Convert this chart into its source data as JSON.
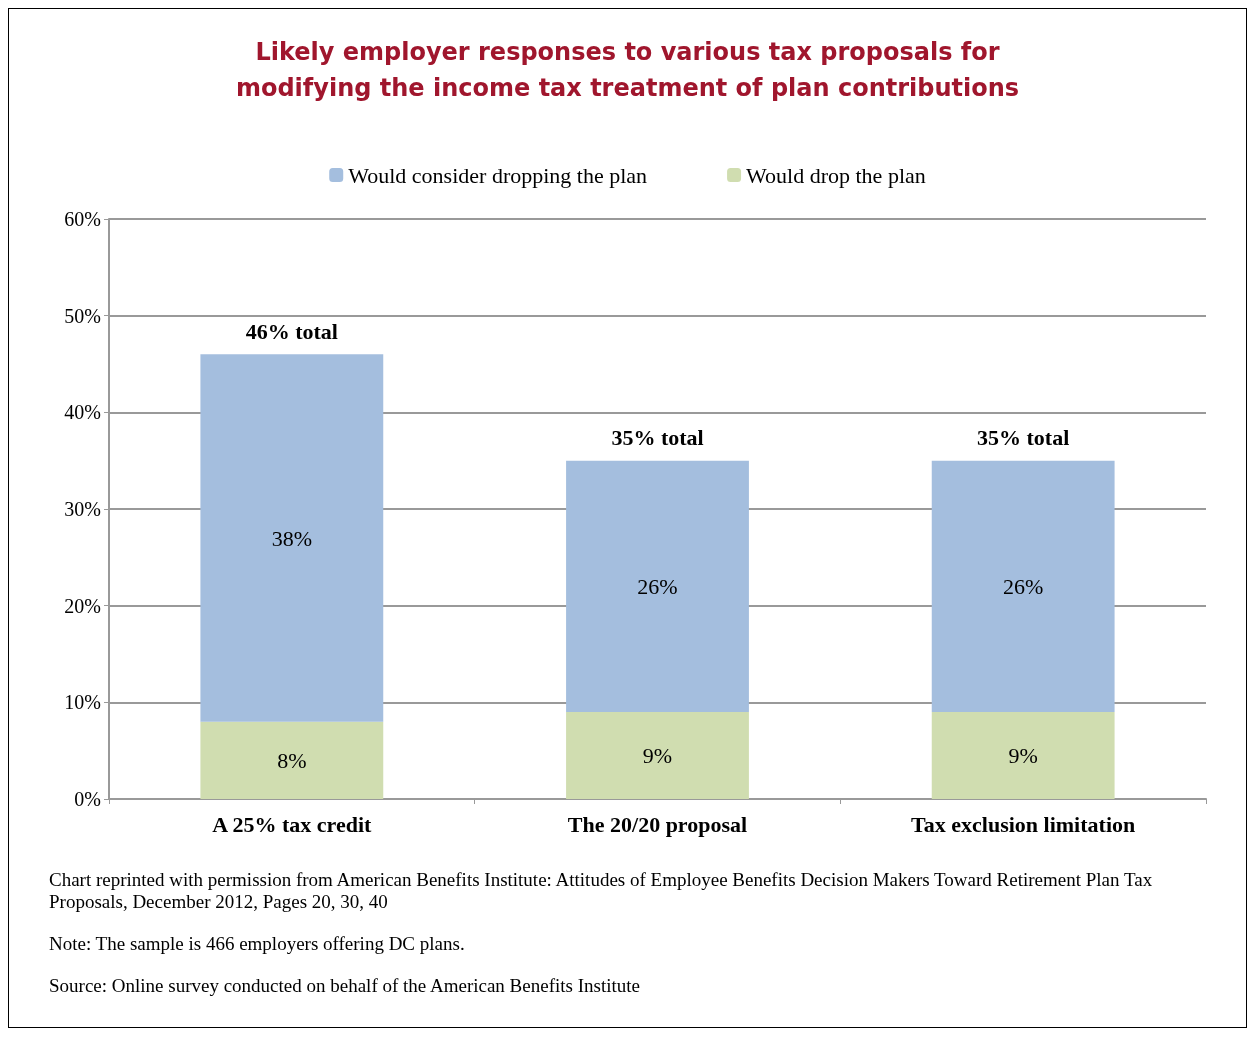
{
  "chart_data": {
    "type": "bar",
    "title": "Likely employer responses to various tax proposals for\nmodifying the income tax treatment of plan contributions",
    "categories": [
      "A 25% tax credit",
      "The 20/20 proposal",
      "Tax exclusion limitation"
    ],
    "stacked": true,
    "series": [
      {
        "name": "Would drop the plan",
        "color": "#d0ddb0",
        "values": [
          8,
          9,
          9
        ],
        "value_labels": [
          "8%",
          "9%",
          "9%"
        ]
      },
      {
        "name": "Would consider dropping the plan",
        "color": "#a4bede",
        "values": [
          38,
          26,
          26
        ],
        "value_labels": [
          "38%",
          "26%",
          "26%"
        ]
      }
    ],
    "totals": [
      "46% total",
      "35% total",
      "35% total"
    ],
    "ylim": [
      0,
      60
    ],
    "yticks": [
      {
        "value": 0,
        "label": "0%"
      },
      {
        "value": 10,
        "label": "10%"
      },
      {
        "value": 20,
        "label": "20%"
      },
      {
        "value": 30,
        "label": "30%"
      },
      {
        "value": 40,
        "label": "40%"
      },
      {
        "value": 50,
        "label": "50%"
      },
      {
        "value": 60,
        "label": "60%"
      }
    ],
    "grid": "y",
    "legend": "top",
    "annotations": [
      "Chart reprinted with permission from American Benefits Institute: Attitudes of Employee Benefits Decision Makers Toward Retirement Plan Tax Proposals, December 2012, Pages 20, 30, 40",
      "Note: The sample is 466 employers offering DC plans.",
      "Source: Online survey conducted on behalf of the American Benefits Institute"
    ]
  }
}
